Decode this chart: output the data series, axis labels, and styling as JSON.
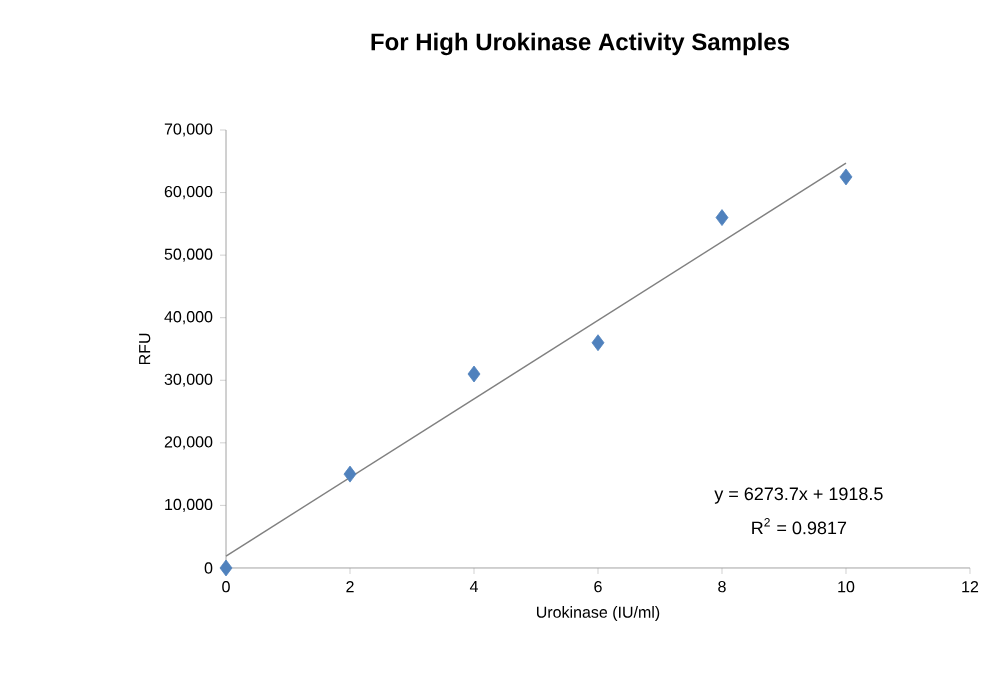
{
  "chart_data": {
    "type": "scatter",
    "title": "For High Urokinase Activity Samples",
    "xlabel": "Urokinase (IU/ml)",
    "ylabel": "RFU",
    "xlim": [
      0,
      12
    ],
    "xticks": [
      0,
      2,
      4,
      6,
      8,
      10,
      12
    ],
    "ylim": [
      0,
      70000
    ],
    "yticks": [
      0,
      {
        "value": 10000,
        "label": "10,000"
      },
      {
        "value": 20000,
        "label": "20,000"
      },
      {
        "value": 30000,
        "label": "30,000"
      },
      {
        "value": 40000,
        "label": "40,000"
      },
      {
        "value": 50000,
        "label": "50,000"
      },
      {
        "value": 60000,
        "label": "60,000"
      },
      {
        "value": 70000,
        "label": "70,000"
      }
    ],
    "grid": false,
    "series": [
      {
        "color": "#4f81bd",
        "marker": "diamond",
        "x": [
          0,
          2,
          4,
          6,
          8,
          10
        ],
        "values": [
          0,
          15000,
          31000,
          36000,
          56000,
          62500
        ]
      },
      {
        "type": "line",
        "marker": "none",
        "color": "#808080",
        "x": [
          0,
          10
        ],
        "values": [
          1900,
          64700
        ]
      }
    ],
    "annotations": [
      "y = 6273.7x + 1918.5",
      "R$^{2}$ = 0.9817"
    ]
  }
}
